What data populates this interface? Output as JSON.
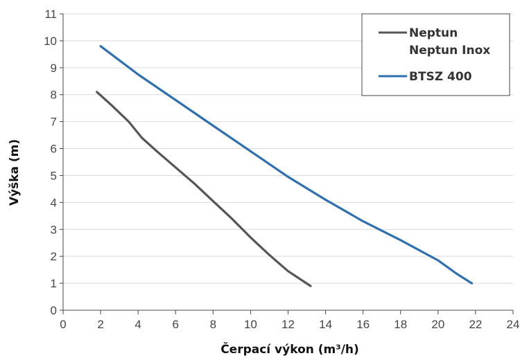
{
  "chart_data": {
    "type": "line",
    "xlabel": "Čerpací výkon (m³/h)",
    "ylabel": "Výška (m)",
    "xlim": [
      0,
      24
    ],
    "ylim": [
      0,
      11
    ],
    "xticks": [
      "0",
      "2",
      "4",
      "6",
      "8",
      "10",
      "12",
      "14",
      "16",
      "18",
      "20",
      "22",
      "24"
    ],
    "yticks": [
      "0",
      "1",
      "2",
      "3",
      "4",
      "5",
      "6",
      "7",
      "8",
      "9",
      "10",
      "11"
    ],
    "grid": "horizontal",
    "legend_position": "top-right",
    "series": [
      {
        "name": "Neptun",
        "name_line2": "Neptun Inox",
        "color": "#555555",
        "x": [
          1.8,
          2.6,
          3.5,
          4.2,
          5.0,
          6.0,
          7.0,
          8.0,
          9.0,
          10.0,
          11.0,
          12.0,
          13.2
        ],
        "y": [
          8.1,
          7.6,
          7.0,
          6.4,
          5.9,
          5.3,
          4.7,
          4.05,
          3.4,
          2.7,
          2.05,
          1.45,
          0.9
        ]
      },
      {
        "name": "BTSZ 400",
        "color": "#2e6fb0",
        "x": [
          2.0,
          4.0,
          6.0,
          8.0,
          10.0,
          12.0,
          14.0,
          16.0,
          18.0,
          20.0,
          21.0,
          21.8
        ],
        "y": [
          9.8,
          8.75,
          7.8,
          6.85,
          5.9,
          4.95,
          4.1,
          3.3,
          2.6,
          1.85,
          1.35,
          1.0
        ]
      }
    ]
  }
}
